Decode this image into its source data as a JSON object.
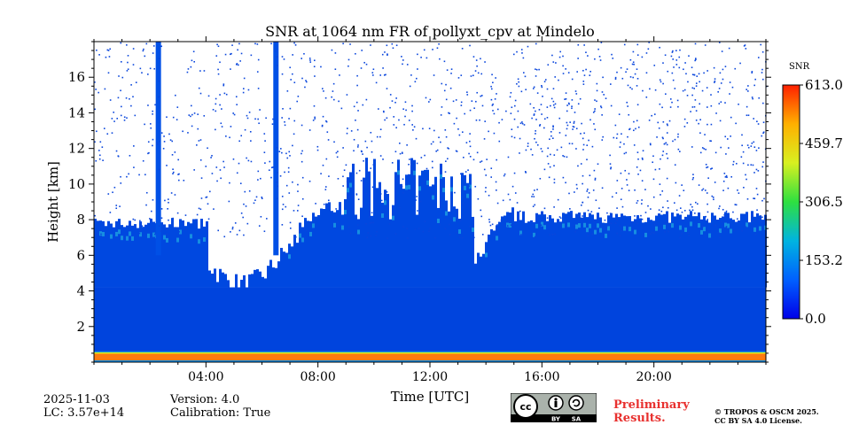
{
  "chart_data": {
    "type": "heatmap",
    "title": "SNR at 1064 nm FR of pollyxt_cpv at Mindelo",
    "xlabel": "Time [UTC]",
    "ylabel": "Height [km]",
    "xlim": [
      0,
      24
    ],
    "ylim": [
      0,
      18
    ],
    "x_ticks": [
      4,
      8,
      12,
      16,
      20
    ],
    "x_tick_labels": [
      "04:00",
      "08:00",
      "12:00",
      "16:00",
      "20:00"
    ],
    "y_ticks": [
      2,
      4,
      6,
      8,
      10,
      12,
      14,
      16
    ],
    "y_tick_labels": [
      "2",
      "4",
      "6",
      "8",
      "10",
      "12",
      "14",
      "16"
    ],
    "colorbar": {
      "label": "SNR",
      "min": 0.0,
      "max": 613.0,
      "ticks": [
        0.0,
        153.2,
        306.5,
        459.7,
        613.0
      ],
      "tick_labels": [
        "0.0",
        "153.2",
        "306.5",
        "459.7",
        "613.0"
      ],
      "colors": [
        "#0000e8",
        "#0060ff",
        "#00b4e0",
        "#2ee040",
        "#d8f020",
        "#ffb000",
        "#ff2000"
      ]
    },
    "features": {
      "surface_layer": {
        "height_km": [
          0.1,
          0.5
        ],
        "snr": 613.0
      },
      "aerosol_layer_top_km": 7.5,
      "noisy_region_above_km": 8,
      "rain_columns_utc": [
        2.3,
        6.5
      ],
      "cloud_times_utc": [
        [
          9.0,
          13.5
        ]
      ]
    }
  },
  "meta": {
    "date": "2025-11-03",
    "lc": "LC: 3.57e+14",
    "version": "Version: 4.0",
    "calibration": "Calibration: True"
  },
  "license": {
    "badge_cc": "cc",
    "badge_by": "BY",
    "badge_sa": "SA",
    "preliminary_line1": "Preliminary",
    "preliminary_line2": "Results.",
    "copyright_line1": "© TROPOS & OSCM 2025.",
    "copyright_line2": "CC BY SA 4.0 License."
  }
}
